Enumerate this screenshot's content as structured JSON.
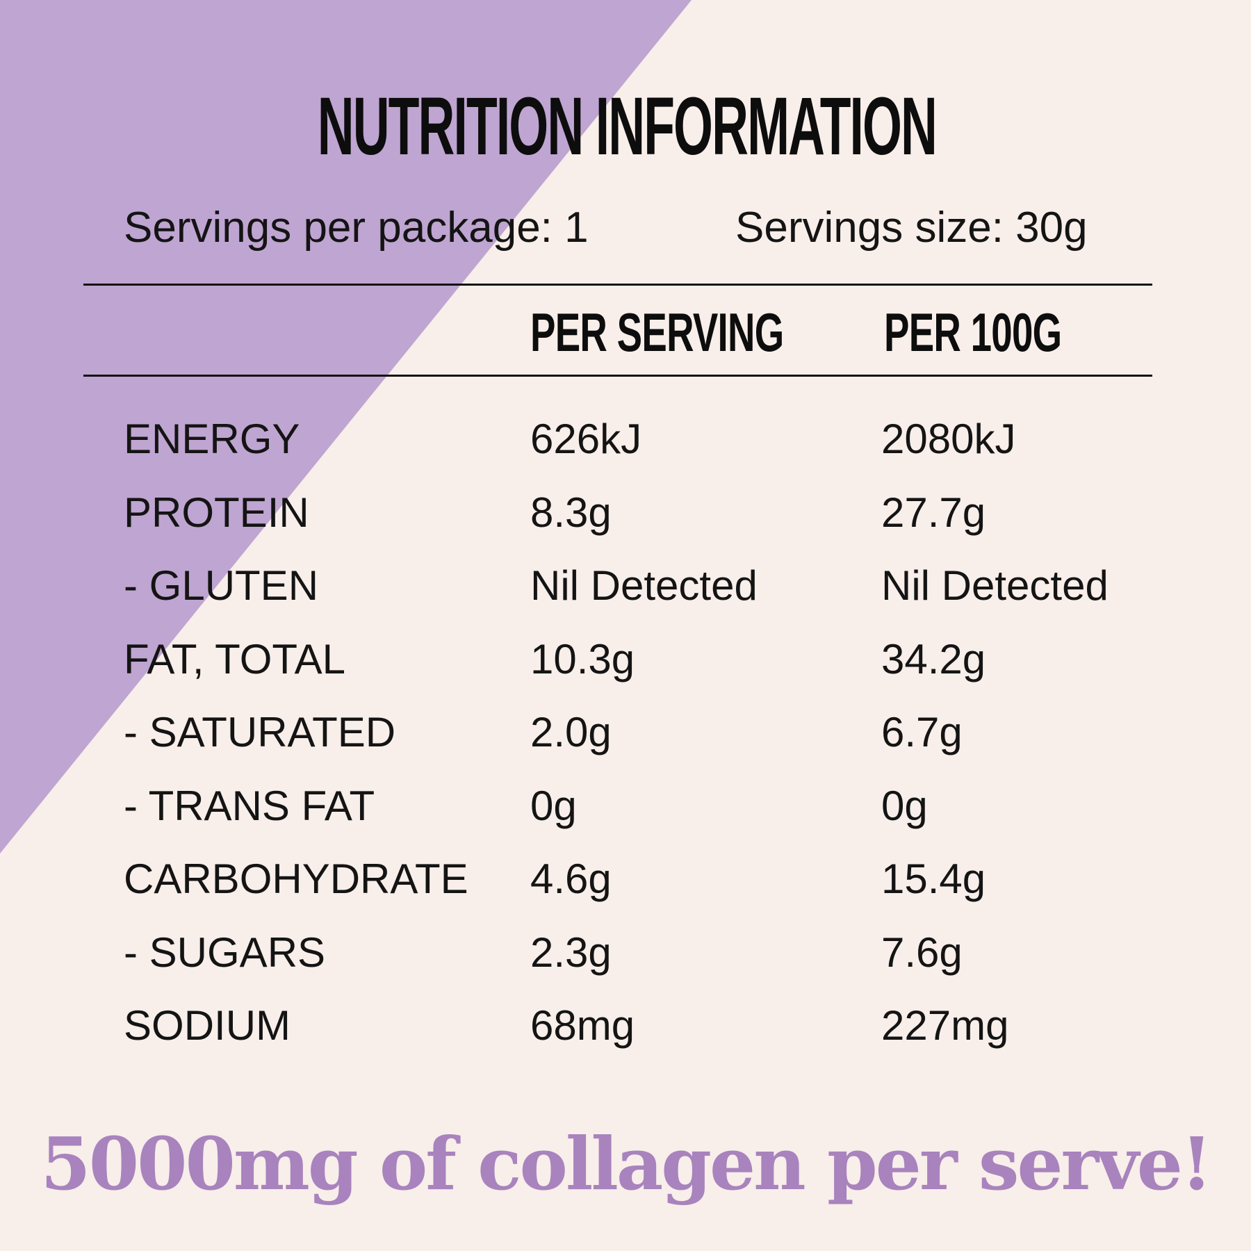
{
  "colors": {
    "background": "#f8eeea",
    "accent_triangle": "#bfa5d1",
    "tagline": "#a883bd",
    "text": "#141414"
  },
  "title": "NUTRITION INFORMATION",
  "servings": {
    "per_package": "Servings per package: 1",
    "size": "Servings size: 30g"
  },
  "columns": {
    "per_serving": "PER SERVING",
    "per_100g": "PER 100G"
  },
  "rows": [
    {
      "label": "ENERGY",
      "per_serving": "626kJ",
      "per_100g": "2080kJ"
    },
    {
      "label": "PROTEIN",
      "per_serving": "8.3g",
      "per_100g": "27.7g"
    },
    {
      "label": "- GLUTEN",
      "per_serving": "Nil Detected",
      "per_100g": "Nil Detected"
    },
    {
      "label": "FAT, TOTAL",
      "per_serving": "10.3g",
      "per_100g": "34.2g"
    },
    {
      "label": "- SATURATED",
      "per_serving": "2.0g",
      "per_100g": "6.7g"
    },
    {
      "label": "- TRANS FAT",
      "per_serving": "0g",
      "per_100g": "0g"
    },
    {
      "label": "CARBOHYDRATE",
      "per_serving": "4.6g",
      "per_100g": "15.4g"
    },
    {
      "label": "- SUGARS",
      "per_serving": "2.3g",
      "per_100g": "7.6g"
    },
    {
      "label": "SODIUM",
      "per_serving": "68mg",
      "per_100g": "227mg"
    }
  ],
  "tagline": "5000mg of collagen per serve!"
}
